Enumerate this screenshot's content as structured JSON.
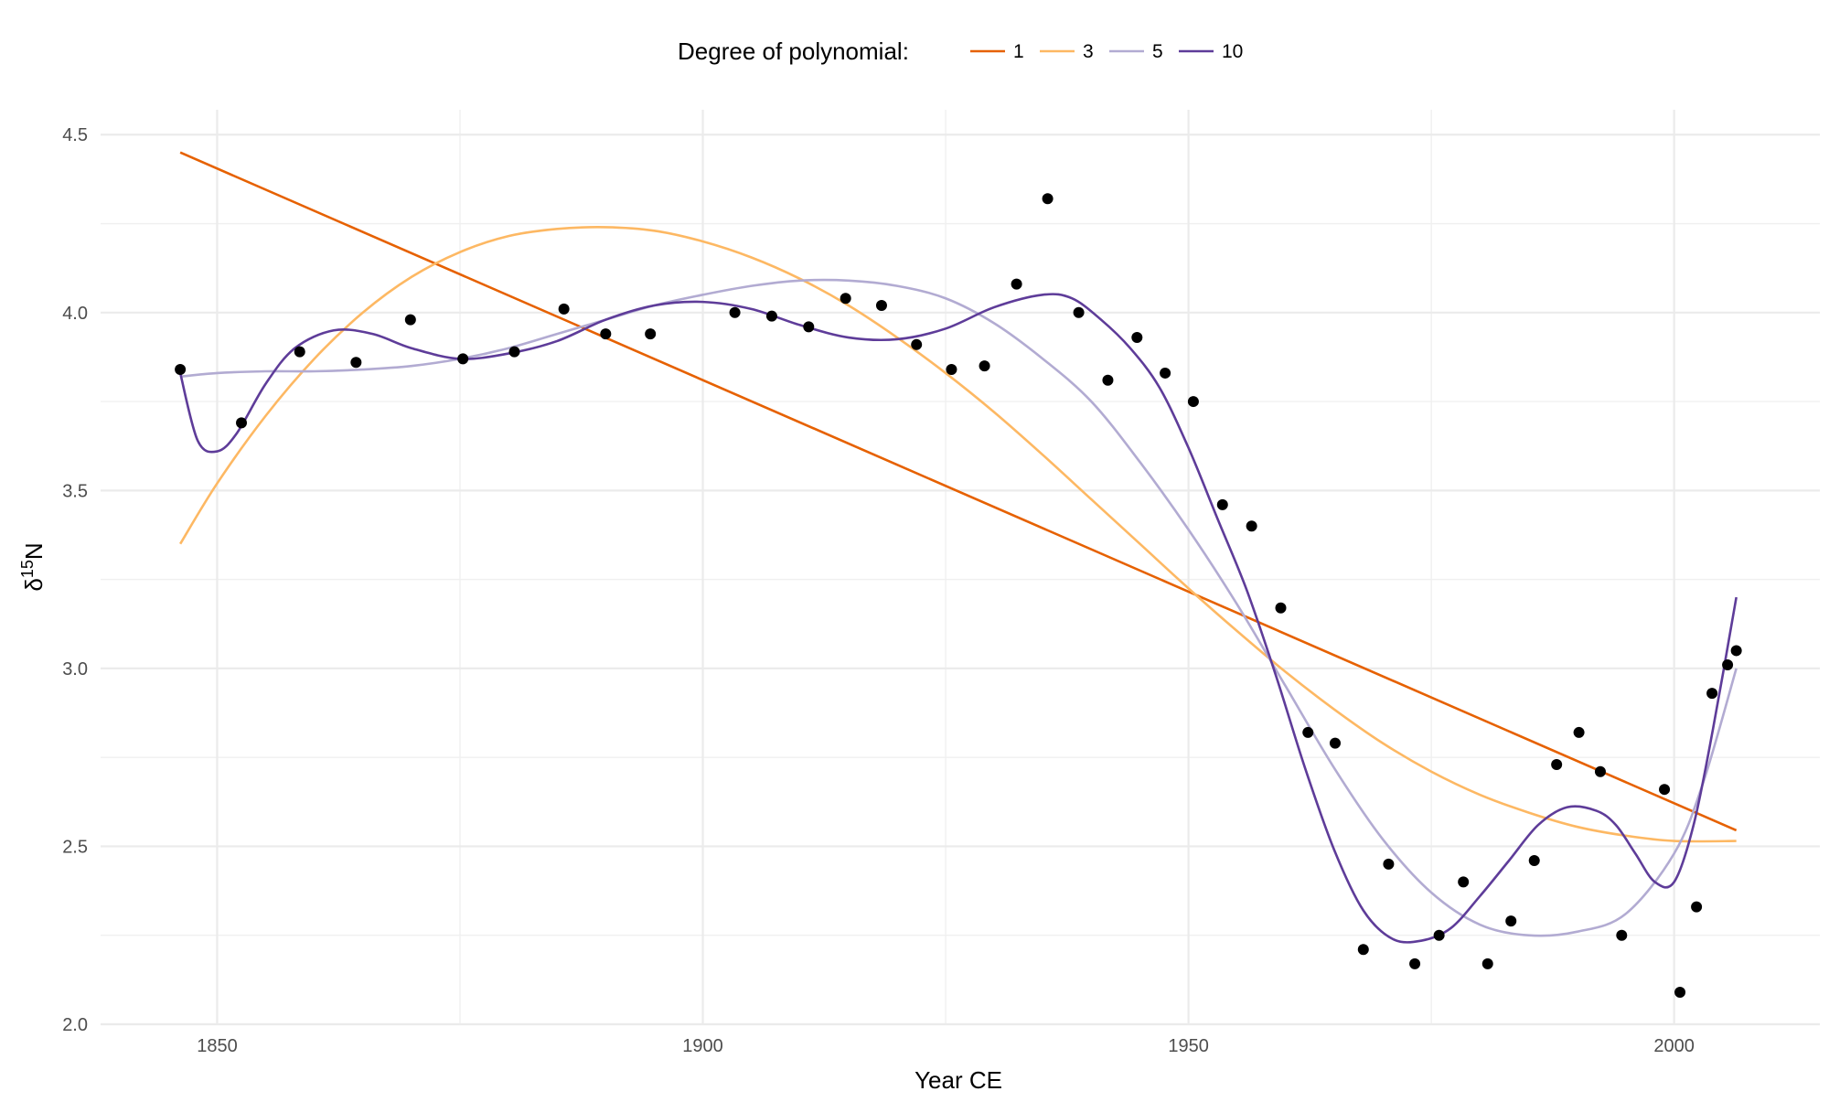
{
  "chart_data": {
    "type": "scatter",
    "xlabel": "Year CE",
    "ylabel_base": "δ",
    "ylabel_sup": "15",
    "ylabel_tail": "N",
    "xlim": [
      1838,
      2015
    ],
    "ylim": [
      2.0,
      4.57
    ],
    "x_ticks": [
      1850,
      1900,
      1950,
      2000
    ],
    "x_tick_labels": [
      "1850",
      "1900",
      "1950",
      "2000"
    ],
    "y_ticks": [
      2.0,
      2.5,
      3.0,
      3.5,
      4.0,
      4.5
    ],
    "y_tick_labels": [
      "2.0",
      "2.5",
      "3.0",
      "3.5",
      "4.0",
      "4.5"
    ],
    "grid": true,
    "legend_position": "top",
    "legend_title": "Degree of polynomial:",
    "points": [
      {
        "x": 1846.2,
        "y": 3.84
      },
      {
        "x": 1852.5,
        "y": 3.69
      },
      {
        "x": 1858.5,
        "y": 3.89
      },
      {
        "x": 1864.3,
        "y": 3.86
      },
      {
        "x": 1869.9,
        "y": 3.98
      },
      {
        "x": 1875.3,
        "y": 3.87
      },
      {
        "x": 1880.6,
        "y": 3.89
      },
      {
        "x": 1885.7,
        "y": 4.01
      },
      {
        "x": 1890.0,
        "y": 3.94
      },
      {
        "x": 1894.6,
        "y": 3.94
      },
      {
        "x": 1903.3,
        "y": 4.0
      },
      {
        "x": 1907.1,
        "y": 3.99
      },
      {
        "x": 1910.9,
        "y": 3.96
      },
      {
        "x": 1914.7,
        "y": 4.04
      },
      {
        "x": 1918.4,
        "y": 4.02
      },
      {
        "x": 1922.0,
        "y": 3.91
      },
      {
        "x": 1925.6,
        "y": 3.84
      },
      {
        "x": 1929.0,
        "y": 3.85
      },
      {
        "x": 1932.3,
        "y": 4.08
      },
      {
        "x": 1935.5,
        "y": 4.32
      },
      {
        "x": 1938.7,
        "y": 4.0
      },
      {
        "x": 1941.7,
        "y": 3.81
      },
      {
        "x": 1944.7,
        "y": 3.93
      },
      {
        "x": 1947.6,
        "y": 3.83
      },
      {
        "x": 1950.5,
        "y": 3.75
      },
      {
        "x": 1953.5,
        "y": 3.46
      },
      {
        "x": 1956.5,
        "y": 3.4
      },
      {
        "x": 1959.5,
        "y": 3.17
      },
      {
        "x": 1962.3,
        "y": 2.82
      },
      {
        "x": 1965.1,
        "y": 2.79
      },
      {
        "x": 1968.0,
        "y": 2.21
      },
      {
        "x": 1970.6,
        "y": 2.45
      },
      {
        "x": 1973.3,
        "y": 2.17
      },
      {
        "x": 1975.8,
        "y": 2.25
      },
      {
        "x": 1978.3,
        "y": 2.4
      },
      {
        "x": 1980.8,
        "y": 2.17
      },
      {
        "x": 1983.2,
        "y": 2.29
      },
      {
        "x": 1985.6,
        "y": 2.46
      },
      {
        "x": 1987.9,
        "y": 2.73
      },
      {
        "x": 1990.2,
        "y": 2.82
      },
      {
        "x": 1992.4,
        "y": 2.71
      },
      {
        "x": 1994.6,
        "y": 2.25
      },
      {
        "x": 1999.0,
        "y": 2.66
      },
      {
        "x": 2000.6,
        "y": 2.09
      },
      {
        "x": 2002.3,
        "y": 2.33
      },
      {
        "x": 2003.9,
        "y": 2.93
      },
      {
        "x": 2005.5,
        "y": 3.01
      },
      {
        "x": 2006.4,
        "y": 3.05
      }
    ],
    "series": [
      {
        "name": "1",
        "color": "#e66101",
        "x": [
          1846.2,
          2006.4
        ],
        "y": [
          4.45,
          2.545
        ]
      },
      {
        "name": "3",
        "color": "#fdb863",
        "x": [
          1846.2,
          1850,
          1855,
          1860,
          1865,
          1870,
          1875,
          1880,
          1885,
          1890,
          1895,
          1900,
          1905,
          1910,
          1915,
          1920,
          1925,
          1930,
          1935,
          1940,
          1945,
          1950,
          1955,
          1960,
          1965,
          1970,
          1975,
          1980,
          1985,
          1990,
          1995,
          2000,
          2006.4
        ],
        "y": [
          3.35,
          3.52,
          3.71,
          3.87,
          4.0,
          4.1,
          4.17,
          4.215,
          4.235,
          4.24,
          4.23,
          4.2,
          4.155,
          4.095,
          4.02,
          3.93,
          3.83,
          3.72,
          3.6,
          3.475,
          3.35,
          3.225,
          3.105,
          2.99,
          2.885,
          2.79,
          2.71,
          2.645,
          2.595,
          2.555,
          2.53,
          2.515,
          2.515
        ]
      },
      {
        "name": "5",
        "color": "#b2abd2",
        "x": [
          1846.2,
          1850,
          1855,
          1860,
          1865,
          1870,
          1875,
          1880,
          1885,
          1890,
          1895,
          1900,
          1905,
          1910,
          1915,
          1920,
          1925,
          1930,
          1935,
          1940,
          1945,
          1950,
          1955,
          1960,
          1965,
          1970,
          1975,
          1980,
          1985,
          1990,
          1995,
          2000,
          2003,
          2006.4
        ],
        "y": [
          3.82,
          3.83,
          3.835,
          3.835,
          3.84,
          3.85,
          3.87,
          3.9,
          3.94,
          3.98,
          4.02,
          4.05,
          4.075,
          4.09,
          4.09,
          4.075,
          4.04,
          3.97,
          3.87,
          3.75,
          3.58,
          3.39,
          3.18,
          2.95,
          2.72,
          2.52,
          2.37,
          2.28,
          2.25,
          2.26,
          2.31,
          2.48,
          2.68,
          3.0
        ]
      },
      {
        "name": "10",
        "color": "#5e3c99",
        "x": [
          1846.2,
          1848,
          1850,
          1852,
          1855,
          1858,
          1862,
          1866,
          1870,
          1875,
          1880,
          1885,
          1890,
          1895,
          1900,
          1905,
          1910,
          1915,
          1920,
          1925,
          1930,
          1935,
          1938,
          1941,
          1944,
          1947,
          1950,
          1953,
          1956,
          1959,
          1962,
          1965,
          1968,
          1971,
          1974,
          1977,
          1980,
          1983,
          1986,
          1989,
          1992,
          1994,
          1996,
          1998,
          2000,
          2002,
          2004,
          2006.4
        ],
        "y": [
          3.83,
          3.64,
          3.61,
          3.66,
          3.8,
          3.9,
          3.95,
          3.94,
          3.9,
          3.87,
          3.885,
          3.92,
          3.98,
          4.02,
          4.03,
          4.01,
          3.965,
          3.93,
          3.925,
          3.955,
          4.015,
          4.05,
          4.04,
          3.98,
          3.9,
          3.79,
          3.62,
          3.42,
          3.22,
          2.98,
          2.72,
          2.49,
          2.32,
          2.24,
          2.235,
          2.27,
          2.36,
          2.46,
          2.56,
          2.61,
          2.6,
          2.56,
          2.48,
          2.4,
          2.4,
          2.56,
          2.83,
          3.2
        ]
      }
    ]
  }
}
